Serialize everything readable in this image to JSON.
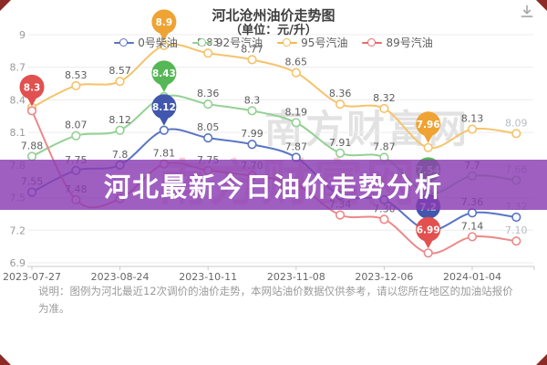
{
  "title": {
    "line1": "河北沧州油价走势图",
    "line2": "（单位：元/升）"
  },
  "legend": [
    {
      "label": "0号柴油",
      "color": "#5a74c4"
    },
    {
      "label": "92号汽油",
      "color": "#8fd08f"
    },
    {
      "label": "95号汽油",
      "color": "#f2b94e"
    },
    {
      "label": "89号汽油",
      "color": "#e66a6a"
    }
  ],
  "banner": {
    "text": "河北最新今日油价走势分析",
    "color": "rgba(138,60,178,0.82)"
  },
  "watermark": {
    "gray_text": "南方财富网",
    "pink_text": "南方财富网"
  },
  "note": "说明：图例为河北最近12次调价的油价走势，本网站油价数据仅供参考，请以您所在地区的加油站报价为准。",
  "icons": {
    "download": "download-icon"
  },
  "chart_data": {
    "type": "line",
    "title": "河北沧州油价走势图（单位：元/升）",
    "x_tick_labels": [
      "2023-07-27",
      "2023-08-24",
      "2023-10-11",
      "2023-11-08",
      "2023-12-06",
      "2024-01-04"
    ],
    "y_ticks": [
      "9",
      "8.7",
      "8.4",
      "8.1",
      "7.8",
      "7.5",
      "7.2",
      "6.9"
    ],
    "ylim": [
      6.9,
      9
    ],
    "n_points": 12,
    "grid": true,
    "legend_position": "top",
    "series": [
      {
        "name": "95号汽油",
        "line_color": "#f5c36a",
        "badge_color": "#efa333",
        "values": [
          8.33,
          8.53,
          8.57,
          8.9,
          8.83,
          8.77,
          8.65,
          8.36,
          8.32,
          7.96,
          8.13,
          8.09
        ],
        "labels": [
          "",
          "8.53",
          "8.57",
          "",
          "8.83",
          "8.77",
          "8.65",
          "8.36",
          "8.32",
          "",
          "8.13",
          "8.09"
        ],
        "badges": [
          {
            "index": 3,
            "text": "8.9"
          },
          {
            "index": 9,
            "text": "7.96"
          }
        ]
      },
      {
        "name": "92号汽油",
        "line_color": "#93d193",
        "badge_color": "#55b755",
        "values": [
          7.88,
          8.07,
          8.12,
          8.43,
          8.36,
          8.3,
          8.19,
          7.91,
          7.87,
          7.54,
          7.7,
          7.66
        ],
        "labels": [
          "7.88",
          "8.07",
          "8.12",
          "",
          "8.36",
          "8.3",
          "8.19",
          "7.91",
          "7.87",
          "",
          "7.7",
          "7.66"
        ],
        "badges": [
          {
            "index": 3,
            "text": "8.43"
          },
          {
            "index": 9,
            "text": "7.54"
          }
        ]
      },
      {
        "name": "0号柴油",
        "line_color": "#5a74c4",
        "badge_color": "#4157ae",
        "values": [
          7.55,
          7.75,
          7.8,
          8.12,
          8.05,
          7.99,
          7.87,
          7.52,
          7.48,
          7.2,
          7.36,
          7.32
        ],
        "labels": [
          "7.55",
          "7.75",
          "7.8",
          "",
          "8.05",
          "7.99",
          "7.87",
          "",
          "",
          "",
          "7.36",
          "7.32"
        ],
        "badges": [
          {
            "index": 3,
            "text": "8.12"
          },
          {
            "index": 9,
            "text": "7.2"
          }
        ]
      },
      {
        "name": "89号汽油",
        "line_color": "#ec8888",
        "badge_color": "#e25050",
        "values": [
          8.3,
          7.48,
          7.49,
          7.81,
          7.75,
          7.7,
          7.62,
          7.34,
          7.3,
          6.99,
          7.14,
          7.1
        ],
        "labels": [
          "",
          "7.48",
          "",
          "7.81",
          "7.75",
          "7.70",
          "",
          "7.34",
          "7.30",
          "",
          "7.14",
          "7.10"
        ],
        "badges": [
          {
            "index": 0,
            "text": "8.3"
          },
          {
            "index": 9,
            "text": "6.99"
          }
        ]
      }
    ]
  }
}
